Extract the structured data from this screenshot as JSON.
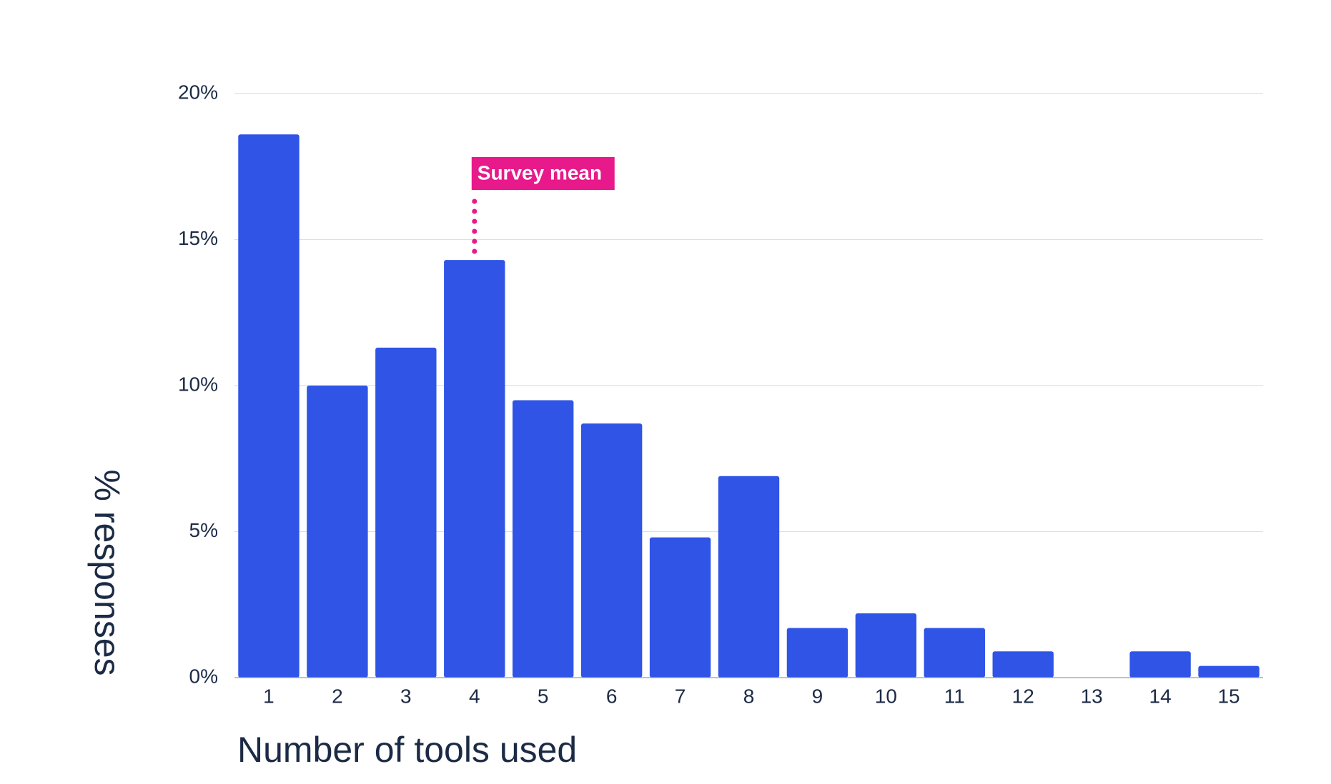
{
  "chart_data": {
    "type": "bar",
    "x_label": "Number of tools used",
    "y_label": "% responses",
    "categories": [
      "1",
      "2",
      "3",
      "4",
      "5",
      "6",
      "7",
      "8",
      "9",
      "10",
      "11",
      "12",
      "13",
      "14",
      "15"
    ],
    "values": [
      18.6,
      10.0,
      11.3,
      14.3,
      9.5,
      8.7,
      4.8,
      6.9,
      1.7,
      2.2,
      1.7,
      0.9,
      0,
      0.9,
      0.4
    ],
    "color": "#2f54e6",
    "ylim": [
      0,
      20
    ],
    "yticks": [
      {
        "value": 0,
        "label": "0%"
      },
      {
        "value": 5,
        "label": "5%"
      },
      {
        "value": 10,
        "label": "10%"
      },
      {
        "value": 15,
        "label": "15%"
      },
      {
        "value": 20,
        "label": "20%"
      }
    ],
    "grid": true,
    "annotation": {
      "text": "Survey mean",
      "x": 4,
      "color": "#e8198b"
    }
  }
}
